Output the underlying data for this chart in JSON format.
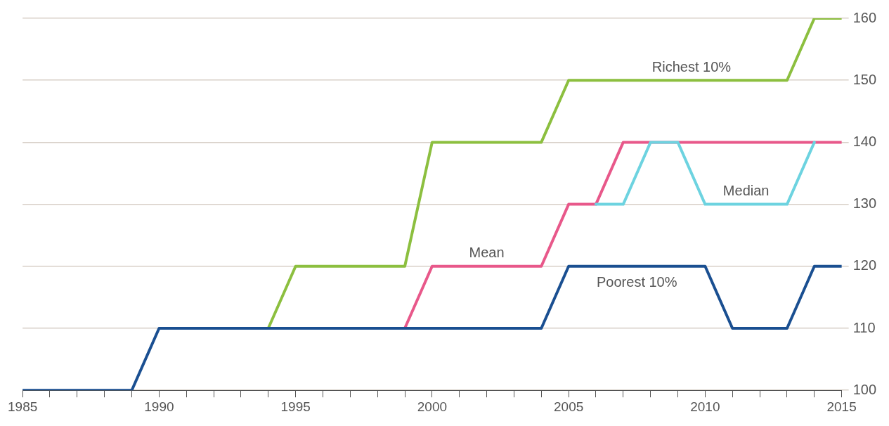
{
  "chart_data": {
    "type": "line",
    "x": [
      1985,
      1986,
      1987,
      1988,
      1989,
      1990,
      1991,
      1992,
      1993,
      1994,
      1995,
      1996,
      1997,
      1998,
      1999,
      2000,
      2001,
      2002,
      2003,
      2004,
      2005,
      2006,
      2007,
      2008,
      2009,
      2010,
      2011,
      2012,
      2013,
      2014,
      2015
    ],
    "series": [
      {
        "name": "Richest 10%",
        "color": "#8cbf3f",
        "values": [
          null,
          null,
          null,
          null,
          null,
          null,
          null,
          null,
          null,
          110,
          120,
          120,
          120,
          120,
          120,
          140,
          140,
          140,
          140,
          140,
          150,
          150,
          150,
          150,
          150,
          150,
          150,
          150,
          150,
          160,
          160
        ]
      },
      {
        "name": "Mean",
        "color": "#e8588a",
        "values": [
          null,
          null,
          null,
          null,
          null,
          null,
          null,
          null,
          null,
          null,
          null,
          null,
          null,
          null,
          110,
          120,
          120,
          120,
          120,
          120,
          130,
          130,
          140,
          140,
          140,
          140,
          140,
          140,
          140,
          140,
          140
        ]
      },
      {
        "name": "Median",
        "color": "#6dd3e0",
        "values": [
          null,
          null,
          null,
          null,
          null,
          null,
          null,
          null,
          null,
          null,
          null,
          null,
          null,
          null,
          null,
          null,
          null,
          null,
          null,
          null,
          null,
          130,
          130,
          140,
          140,
          130,
          130,
          130,
          130,
          140,
          null
        ]
      },
      {
        "name": "Poorest 10%",
        "color": "#1a4f91",
        "values": [
          100,
          100,
          100,
          100,
          100,
          110,
          110,
          110,
          110,
          110,
          110,
          110,
          110,
          110,
          110,
          110,
          110,
          110,
          110,
          110,
          120,
          120,
          120,
          120,
          120,
          120,
          110,
          110,
          110,
          120,
          120
        ]
      }
    ],
    "xlim": [
      1985,
      2015
    ],
    "xticks": [
      1985,
      {
        "value": 1986,
        "label": null
      },
      {
        "value": 1987,
        "label": null
      },
      {
        "value": 1988,
        "label": null
      },
      {
        "value": 1989,
        "label": null
      },
      1990,
      {
        "value": 1991,
        "label": null
      },
      {
        "value": 1992,
        "label": null
      },
      {
        "value": 1993,
        "label": null
      },
      {
        "value": 1994,
        "label": null
      },
      1995,
      {
        "value": 1996,
        "label": null
      },
      {
        "value": 1997,
        "label": null
      },
      {
        "value": 1998,
        "label": null
      },
      {
        "value": 1999,
        "label": null
      },
      2000,
      {
        "value": 2001,
        "label": null
      },
      {
        "value": 2002,
        "label": null
      },
      {
        "value": 2003,
        "label": null
      },
      {
        "value": 2004,
        "label": null
      },
      2005,
      {
        "value": 2006,
        "label": null
      },
      {
        "value": 2007,
        "label": null
      },
      {
        "value": 2008,
        "label": null
      },
      {
        "value": 2009,
        "label": null
      },
      2010,
      {
        "value": 2011,
        "label": null
      },
      {
        "value": 2012,
        "label": null
      },
      {
        "value": 2013,
        "label": null
      },
      {
        "value": 2014,
        "label": null
      },
      2015
    ],
    "ylim": [
      100,
      160
    ],
    "yticks": [
      100,
      110,
      120,
      130,
      140,
      150,
      160
    ],
    "grid": "y",
    "legend": false,
    "marker": "none",
    "line_style": "solid"
  }
}
